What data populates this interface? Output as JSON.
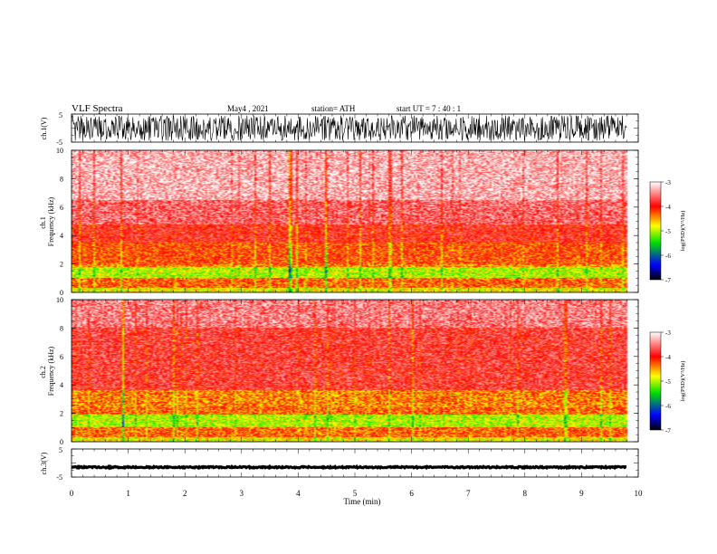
{
  "header": {
    "title": "VLF  Spectra",
    "date": "May4  , 2021",
    "station": "station= ATH",
    "start": "start  UT  =   7  : 40 : 1"
  },
  "colorbar": {
    "label": "log(PSD)(V²/Hz)",
    "ticks": [
      "-3",
      "-4",
      "-5",
      "-6",
      "-7"
    ],
    "colors": [
      "#ffffff",
      "#ff0000",
      "#ffff00",
      "#00e000",
      "#0000ff",
      "#000000"
    ]
  },
  "chart_data": [
    {
      "type": "line",
      "name": "ch.1 waveform",
      "ylabel": "ch.1(V)",
      "ylim": [
        -5,
        5
      ],
      "yticks": [
        "5",
        "-5"
      ],
      "x": [
        0,
        9.8
      ],
      "description_values": {
        "amplitude_range_V": [
          -4.5,
          4.5
        ]
      }
    },
    {
      "type": "heatmap",
      "ylabel": "ch.1\nFrequency  (kHz)",
      "ylim": [
        0,
        10
      ],
      "yticks": [
        "0",
        "2",
        "4",
        "6",
        "8",
        "10"
      ],
      "xlim": [
        0,
        9.8
      ],
      "bands": [
        {
          "f": [
            0,
            0.3
          ],
          "level": -4.8
        },
        {
          "f": [
            0.3,
            1.0
          ],
          "level": -4.3
        },
        {
          "f": [
            1.0,
            1.8
          ],
          "level": -5.0
        },
        {
          "f": [
            1.8,
            2.0
          ],
          "level": -4.4
        },
        {
          "f": [
            2.0,
            3.5
          ],
          "level": -4.2
        },
        {
          "f": [
            3.5,
            4.8
          ],
          "level": -3.9
        },
        {
          "f": [
            4.8,
            6.5
          ],
          "level": -3.6
        },
        {
          "f": [
            6.5,
            10
          ],
          "level": -3.3
        }
      ]
    },
    {
      "type": "heatmap",
      "ylabel": "ch.2\nFrequency  (kHz)",
      "ylim": [
        0,
        10
      ],
      "yticks": [
        "0",
        "2",
        "4",
        "6",
        "8",
        "10"
      ],
      "xlim": [
        0,
        9.8
      ],
      "bands": [
        {
          "f": [
            0,
            0.3
          ],
          "level": -4.8
        },
        {
          "f": [
            0.3,
            1.0
          ],
          "level": -4.3
        },
        {
          "f": [
            1.0,
            1.9
          ],
          "level": -5.0
        },
        {
          "f": [
            1.9,
            2.4
          ],
          "level": -4.3
        },
        {
          "f": [
            2.4,
            3.6
          ],
          "level": -4.4
        },
        {
          "f": [
            3.6,
            8.0
          ],
          "level": -3.8
        },
        {
          "f": [
            8.0,
            10
          ],
          "level": -3.5
        }
      ]
    },
    {
      "type": "line",
      "name": "ch.3 waveform",
      "ylabel": "ch.3(V)",
      "ylim": [
        -5,
        5
      ],
      "yticks": [
        "5",
        "-5"
      ],
      "x": [
        0,
        9.8
      ],
      "description_values": {
        "level_V": -1.5
      }
    }
  ],
  "xaxis": {
    "label": "Time  (min)",
    "xlim": [
      0,
      10
    ],
    "ticks": [
      "0",
      "1",
      "2",
      "3",
      "4",
      "5",
      "6",
      "7",
      "8",
      "9",
      "10"
    ]
  }
}
